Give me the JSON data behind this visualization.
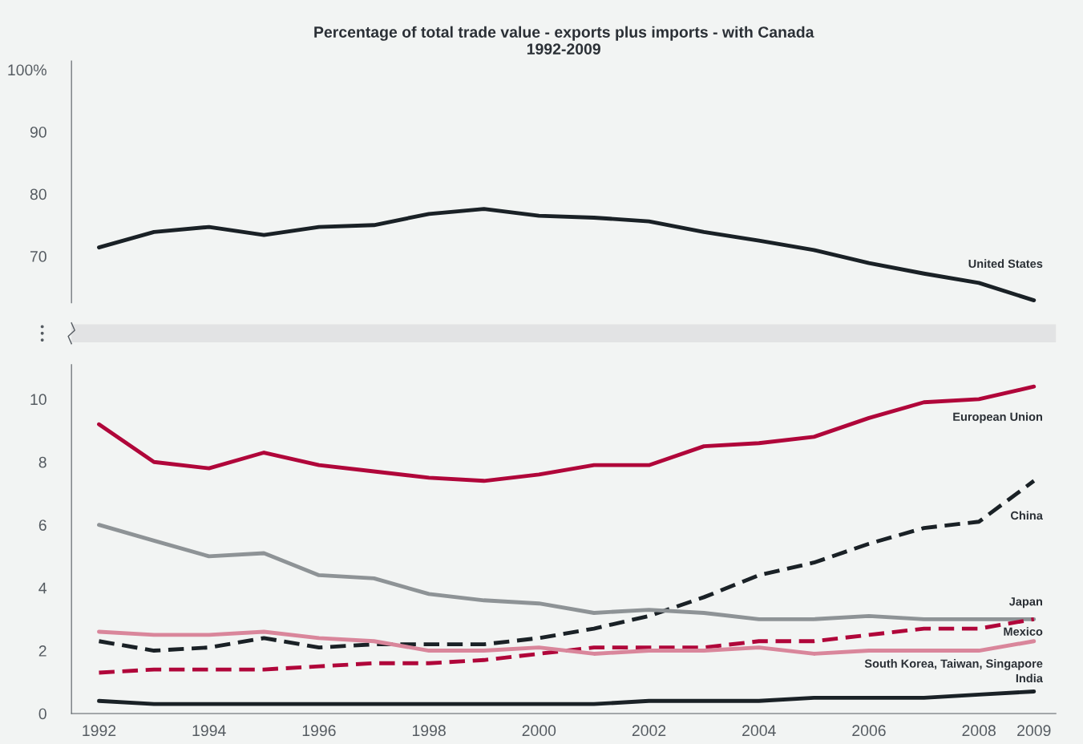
{
  "chart_data": [
    {
      "type": "line",
      "title": "Percentage of total trade value - exports plus imports - with Canada\n1992-2009",
      "x": [
        1992,
        1993,
        1994,
        1995,
        1996,
        1997,
        1998,
        1999,
        2000,
        2001,
        2002,
        2003,
        2004,
        2005,
        2006,
        2007,
        2008,
        2009
      ],
      "ylim": [
        62.5,
        101.4
      ],
      "yticks": [
        70,
        80,
        90,
        {
          "value": 100,
          "label": "100%"
        }
      ],
      "tick_labels": "y",
      "grid": false,
      "legend": false,
      "series": [
        {
          "name": "United States",
          "color": "#1a2126",
          "line_style": "solid",
          "values": [
            71.4,
            73.9,
            74.7,
            73.4,
            74.7,
            75.0,
            76.8,
            77.6,
            76.5,
            76.2,
            75.6,
            73.9,
            72.5,
            71.0,
            68.9,
            67.2,
            65.7,
            62.9
          ]
        }
      ]
    },
    {
      "type": "line",
      "x": [
        1992,
        1993,
        1994,
        1995,
        1996,
        1997,
        1998,
        1999,
        2000,
        2001,
        2002,
        2003,
        2004,
        2005,
        2006,
        2007,
        2008,
        2009
      ],
      "xlim": [
        1991.5,
        2009.4
      ],
      "xticks": [
        1992,
        1994,
        1996,
        1998,
        2000,
        2002,
        2004,
        2006,
        2008,
        2009
      ],
      "ylim": [
        0,
        11.1
      ],
      "yticks": [
        0,
        2,
        4,
        6,
        8,
        10
      ],
      "grid": false,
      "legend": false,
      "series": [
        {
          "name": "European Union",
          "color": "#b0063a",
          "line_style": "solid",
          "values": [
            9.2,
            8.0,
            7.8,
            8.3,
            7.9,
            7.7,
            7.5,
            7.4,
            7.6,
            7.9,
            7.9,
            8.5,
            8.6,
            8.8,
            9.4,
            9.9,
            10.0,
            10.4
          ]
        },
        {
          "name": "China",
          "color": "#1a2126",
          "line_style": "dashed",
          "values": [
            2.3,
            2.0,
            2.1,
            2.4,
            2.1,
            2.2,
            2.2,
            2.2,
            2.4,
            2.7,
            3.1,
            3.7,
            4.4,
            4.8,
            5.4,
            5.9,
            6.1,
            7.4
          ]
        },
        {
          "name": "Japan",
          "color": "#8e9396",
          "line_style": "solid",
          "values": [
            6.0,
            5.5,
            5.0,
            5.1,
            4.4,
            4.3,
            3.8,
            3.6,
            3.5,
            3.2,
            3.3,
            3.2,
            3.0,
            3.0,
            3.1,
            3.0,
            3.0,
            3.0
          ]
        },
        {
          "name": "Mexico",
          "color": "#b0063a",
          "line_style": "dashed",
          "values": [
            1.3,
            1.4,
            1.4,
            1.4,
            1.5,
            1.6,
            1.6,
            1.7,
            1.9,
            2.1,
            2.1,
            2.1,
            2.3,
            2.3,
            2.5,
            2.7,
            2.7,
            3.0
          ]
        },
        {
          "name": "South Korea, Taiwan, Singapore",
          "color": "#d9869b",
          "line_style": "solid",
          "values": [
            2.6,
            2.5,
            2.5,
            2.6,
            2.4,
            2.3,
            2.0,
            2.0,
            2.1,
            1.9,
            2.0,
            2.0,
            2.1,
            1.9,
            2.0,
            2.0,
            2.0,
            2.3
          ]
        },
        {
          "name": "India",
          "color": "#1a2126",
          "line_style": "solid",
          "values": [
            0.4,
            0.3,
            0.3,
            0.3,
            0.3,
            0.3,
            0.3,
            0.3,
            0.3,
            0.3,
            0.4,
            0.4,
            0.4,
            0.5,
            0.5,
            0.5,
            0.6,
            0.7
          ]
        }
      ]
    }
  ]
}
